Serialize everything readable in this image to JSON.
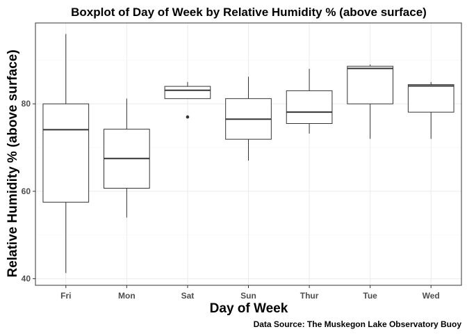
{
  "chart_data": {
    "type": "boxplot",
    "title": "Boxplot of Day of Week by Relative Humidity % (above surface)",
    "xlabel": "Day of Week",
    "ylabel": "Relative Humidity % (above surface)",
    "caption": "Data Source: The Muskegon Lake Observatory Buoy",
    "ylim": [
      38.5,
      98.5
    ],
    "yticks": [
      40,
      60,
      80
    ],
    "grid": true,
    "categories": [
      "Fri",
      "Mon",
      "Sat",
      "Sun",
      "Thur",
      "Tue",
      "Wed"
    ],
    "boxes": [
      {
        "category": "Fri",
        "min": 41.3,
        "q1": 57.5,
        "median": 74.1,
        "q3": 80.0,
        "max": 96.0,
        "outliers": []
      },
      {
        "category": "Mon",
        "min": 54.0,
        "q1": 60.7,
        "median": 67.5,
        "q3": 74.2,
        "max": 81.2,
        "outliers": []
      },
      {
        "category": "Sat",
        "min": 81.2,
        "q1": 81.2,
        "median": 83.1,
        "q3": 84.0,
        "max": 85.0,
        "outliers": [
          77.0
        ]
      },
      {
        "category": "Sun",
        "min": 67.0,
        "q1": 71.9,
        "median": 76.5,
        "q3": 81.2,
        "max": 86.2,
        "outliers": []
      },
      {
        "category": "Thur",
        "min": 73.2,
        "q1": 75.5,
        "median": 78.1,
        "q3": 83.0,
        "max": 88.0,
        "outliers": []
      },
      {
        "category": "Tue",
        "min": 72.0,
        "q1": 80.0,
        "median": 88.1,
        "q3": 88.6,
        "max": 89.0,
        "outliers": []
      },
      {
        "category": "Wed",
        "min": 72.0,
        "q1": 78.1,
        "median": 84.1,
        "q3": 84.4,
        "max": 85.0,
        "outliers": []
      }
    ]
  }
}
